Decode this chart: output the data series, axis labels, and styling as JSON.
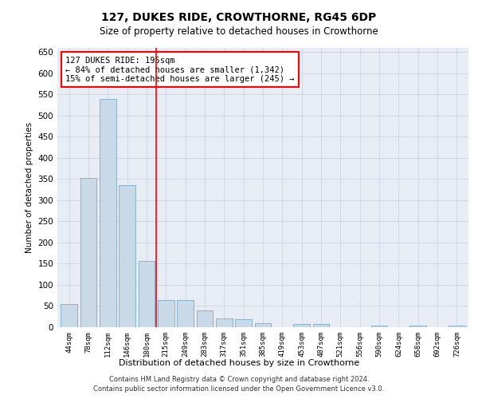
{
  "title": "127, DUKES RIDE, CROWTHORNE, RG45 6DP",
  "subtitle": "Size of property relative to detached houses in Crowthorne",
  "xlabel": "Distribution of detached houses by size in Crowthorne",
  "ylabel": "Number of detached properties",
  "footer_line1": "Contains HM Land Registry data © Crown copyright and database right 2024.",
  "footer_line2": "Contains public sector information licensed under the Open Government Licence v3.0.",
  "categories": [
    "44sqm",
    "78sqm",
    "112sqm",
    "146sqm",
    "180sqm",
    "215sqm",
    "249sqm",
    "283sqm",
    "317sqm",
    "351sqm",
    "385sqm",
    "419sqm",
    "453sqm",
    "487sqm",
    "521sqm",
    "556sqm",
    "590sqm",
    "624sqm",
    "658sqm",
    "692sqm",
    "726sqm"
  ],
  "values": [
    55,
    352,
    540,
    335,
    157,
    65,
    65,
    40,
    20,
    18,
    9,
    0,
    8,
    8,
    0,
    0,
    4,
    0,
    4,
    0,
    4
  ],
  "bar_color": "#c9d9e8",
  "bar_edge_color": "#7aaac8",
  "grid_color": "#c8d0de",
  "background_color": "#e8ecf4",
  "annotation_box_text": "127 DUKES RIDE: 195sqm\n← 84% of detached houses are smaller (1,342)\n15% of semi-detached houses are larger (245) →",
  "annotation_box_color": "red",
  "vline_x": 4.5,
  "vline_color": "red",
  "ylim": [
    0,
    660
  ],
  "yticks": [
    0,
    50,
    100,
    150,
    200,
    250,
    300,
    350,
    400,
    450,
    500,
    550,
    600,
    650
  ]
}
